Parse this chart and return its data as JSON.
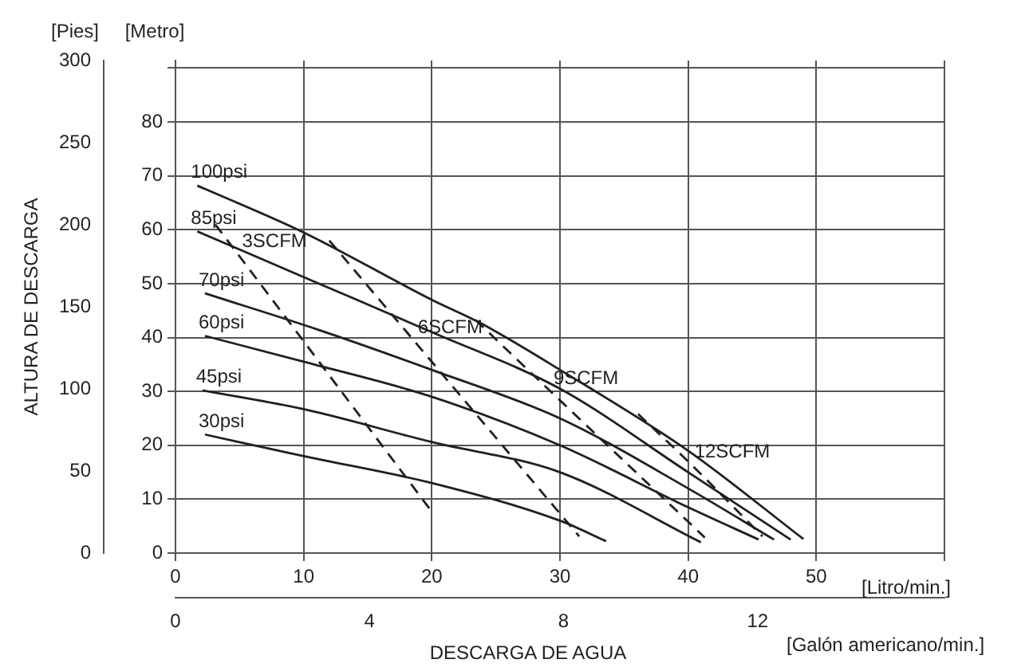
{
  "chart_data": {
    "type": "line",
    "xlabel": "[Litro/min.]",
    "x2label": "[Galón americano/min.]",
    "ylabel": "[Metro]",
    "y2label": "[Pies]",
    "annotations": [
      "ALTURA DE DESCARGA",
      "DESCARGA DE AGUA"
    ],
    "xlim": [
      0,
      60
    ],
    "xticks": [
      0,
      10,
      20,
      30,
      40,
      50,
      {
        "value": 60,
        "label": null
      }
    ],
    "x2lim": [
      0,
      15.85
    ],
    "x2ticks": [
      0,
      4,
      8,
      12
    ],
    "ylim": [
      0,
      91.4
    ],
    "yticks": [
      0,
      10,
      20,
      30,
      40,
      50,
      60,
      70,
      80,
      {
        "value": 90,
        "label": null
      }
    ],
    "y2lim": [
      0,
      300
    ],
    "y2ticks": [
      0,
      50,
      100,
      150,
      200,
      250,
      300
    ],
    "grid": true,
    "legend": false,
    "marker": "none",
    "line_style": "solid",
    "series": [
      {
        "name": "100psi",
        "color": "#231f20",
        "x": [
          1.7,
          10,
          20,
          23.7,
          30,
          40,
          49
        ],
        "values": [
          68.2,
          59.5,
          47,
          42.8,
          34,
          19,
          2.6
        ]
      },
      {
        "name": "85psi",
        "color": "#231f20",
        "x": [
          1.7,
          11.2,
          20,
          30,
          40,
          48
        ],
        "values": [
          59.7,
          50,
          41,
          30.5,
          15,
          2.5
        ]
      },
      {
        "name": "70psi",
        "color": "#231f20",
        "x": [
          2.3,
          11.2,
          20,
          30,
          40,
          46.7
        ],
        "values": [
          48.2,
          41.4,
          34,
          25,
          12,
          2.5
        ]
      },
      {
        "name": "60psi",
        "color": "#231f20",
        "x": [
          2.3,
          10,
          20,
          30,
          40,
          45.5
        ],
        "values": [
          40.3,
          35.5,
          29,
          20,
          8.5,
          2.5
        ]
      },
      {
        "name": "45psi",
        "color": "#231f20",
        "x": [
          2.1,
          10,
          20,
          30,
          41
        ],
        "values": [
          30.2,
          26.7,
          20.6,
          15,
          2
        ]
      },
      {
        "name": "30psi",
        "color": "#231f20",
        "x": [
          2.3,
          10,
          20,
          30,
          33.6
        ],
        "values": [
          22,
          18,
          13,
          6,
          2.2
        ]
      },
      {
        "name": "3SCFM",
        "color": "#231f20",
        "line_style": "dashed",
        "x": [
          3.1,
          4.7,
          19.9
        ],
        "values": [
          61,
          56,
          8
        ]
      },
      {
        "name": "6SCFM",
        "color": "#231f20",
        "line_style": "dashed",
        "x": [
          12,
          18.4,
          31.5
        ],
        "values": [
          58,
          40,
          3.1
        ]
      },
      {
        "name": "9SCFM",
        "color": "#231f20",
        "line_style": "dashed",
        "x": [
          23.4,
          29,
          41.3
        ],
        "values": [
          43.3,
          30.6,
          2.9
        ]
      },
      {
        "name": "12SCFM",
        "color": "#231f20",
        "line_style": "dashed",
        "x": [
          36.1,
          40,
          45.8
        ],
        "values": [
          25.8,
          17,
          3.1
        ]
      }
    ]
  }
}
